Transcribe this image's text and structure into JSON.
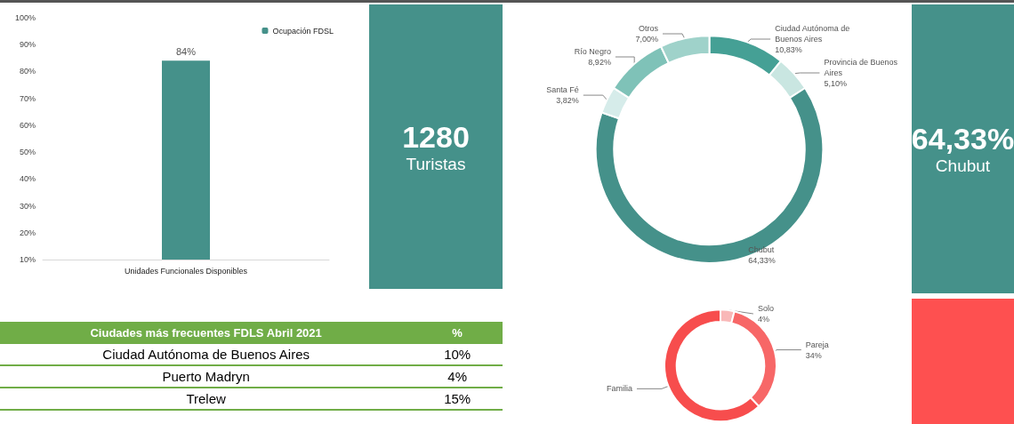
{
  "chart_data": [
    {
      "type": "bar",
      "categories": [
        "Unidades Funcionales Disponibles"
      ],
      "series": [
        {
          "name": "Ocupación FDSL",
          "color": "#45918a",
          "values": [
            84
          ],
          "value_labels": [
            "84%"
          ]
        }
      ],
      "ylim": [
        10,
        100
      ],
      "yticks": [
        {
          "value": 10,
          "label": "10%"
        },
        {
          "value": 20,
          "label": "20%"
        },
        {
          "value": 30,
          "label": "30%"
        },
        {
          "value": 40,
          "label": "40%"
        },
        {
          "value": 50,
          "label": "50%"
        },
        {
          "value": 60,
          "label": "60%"
        },
        {
          "value": 70,
          "label": "70%"
        },
        {
          "value": 80,
          "label": "80%"
        },
        {
          "value": 90,
          "label": "90%"
        },
        {
          "value": 100,
          "label": "100%"
        }
      ],
      "legend": "top right"
    },
    {
      "type": "other",
      "title": "1280",
      "subtitle": "Turistas",
      "color": "#45918a"
    },
    {
      "type": "donut",
      "categories": [
        "Ciudad Autónoma de Buenos Aires",
        "Provincia de Buenos Aires",
        "Chubut",
        "Santa Fé",
        "Río Negro",
        "Otros"
      ],
      "values": [
        10.83,
        5.1,
        64.33,
        3.82,
        8.92,
        7.0
      ],
      "value_labels": [
        "10,83%",
        "5,10%",
        "64,33%",
        "3,82%",
        "8,92%",
        "7,00%"
      ],
      "colors": [
        "#45a095",
        "#c9e6e1",
        "#45918a",
        "#d6ecea",
        "#7fc2b8",
        "#9fd2ca"
      ]
    },
    {
      "type": "other",
      "title": "64,33%",
      "subtitle": "Chubut",
      "color": "#45918a"
    },
    {
      "type": "other",
      "title": "Ciudades más frecuentes FDLS Abril 2021",
      "annotations": [
        "%",
        "Ciudad Autónoma de Buenos Aires",
        "10%",
        "Puerto Madryn",
        "4%",
        "Trelew",
        "15%"
      ],
      "color": "#70ad47"
    },
    {
      "type": "donut",
      "categories": [
        "Solo",
        "Pareja",
        "Familia"
      ],
      "values": [
        4,
        34,
        62
      ],
      "value_labels": [
        "4%",
        "34%",
        null
      ],
      "colors": [
        "#f9b8b8",
        "#f76767",
        "#f74d4d"
      ]
    }
  ]
}
